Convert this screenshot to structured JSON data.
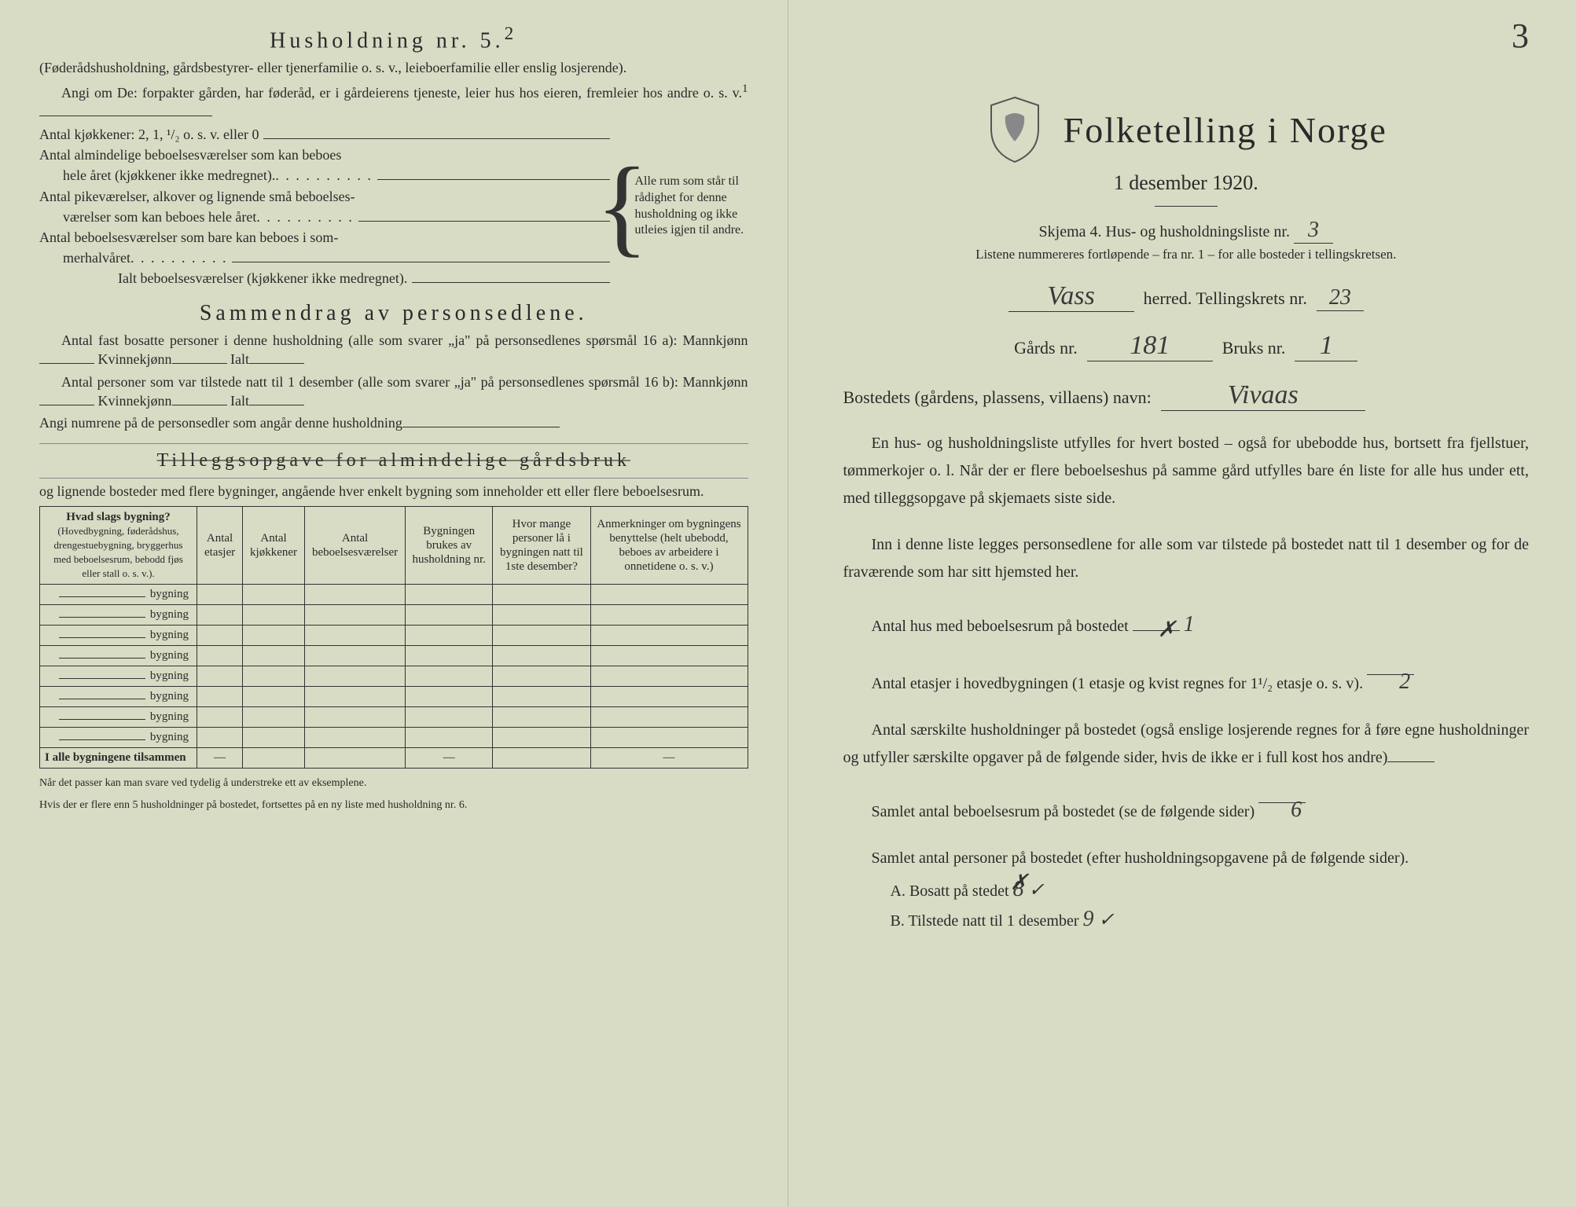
{
  "left": {
    "household_title": "Husholdning nr. 5.",
    "household_title_sup": "2",
    "household_sub": "(Føderådshusholdning, gårdsbestyrer- eller tjenerfamilie o. s. v., leieboerfamilie eller enslig losjerende).",
    "angi_line": "Angi om De: forpakter gården, har føderåd, er i gårdeierens tjeneste, leier hus hos eieren, fremleier hos andre o. s. v.",
    "angi_sup": "1",
    "kjokken_line": "Antal kjøkkener: 2, 1, ¹/₂ o. s. v. eller 0",
    "alm_line1": "Antal almindelige beboelsesværelser som kan beboes",
    "alm_line2": "hele året (kjøkkener ikke medregnet).",
    "pike_line1": "Antal pikeværelser, alkover og lignende små beboelses-",
    "pike_line2": "værelser som kan beboes hele året",
    "som_line1": "Antal beboelsesværelser som bare kan beboes i som-",
    "som_line2": "merhalvåret",
    "ialt_line": "Ialt beboelsesværelser (kjøkkener ikke medregnet).",
    "brace_text": "Alle rum som står til rådighet for denne husholdning og ikke utleies igjen til andre.",
    "sammendrag_title": "Sammendrag av personsedlene.",
    "sam_line1": "Antal fast bosatte personer i denne husholdning (alle som svarer „ja\" på personsedlenes spørsmål 16 a): Mannkjønn",
    "sam_kv": "Kvinnekjønn",
    "sam_ialt": "Ialt",
    "sam_line2": "Antal personer som var tilstede natt til 1 desember (alle som svarer „ja\" på personsedlenes spørsmål 16 b): Mannkjønn",
    "angi_num": "Angi numrene på de personsedler som angår denne husholdning",
    "tillegg_title": "Tilleggsopgave for almindelige gårdsbruk",
    "tillegg_sub": "og lignende bosteder med flere bygninger, angående hver enkelt bygning som inneholder ett eller flere beboelsesrum.",
    "table": {
      "col1": "Hvad slags bygning?",
      "col1_sub": "(Hovedbygning, føderådshus, drengestuebygning, bryggerhus med beboelsesrum, bebodd fjøs eller stall o. s. v.).",
      "col2": "Antal etasjer",
      "col3": "Antal kjøkkener",
      "col4": "Antal beboelsesværelser",
      "col5": "Bygningen brukes av husholdning nr.",
      "col6": "Hvor mange personer lå i bygningen natt til 1ste desember?",
      "col7": "Anmerkninger om bygningens benyttelse (helt ubebodd, beboes av arbeidere i onnetidene o. s. v.)",
      "rowlabel": "bygning",
      "sumrow": "I alle bygningene tilsammen"
    },
    "footnote1": "Når det passer kan man svare ved tydelig å understreke ett av eksemplene.",
    "footnote2": "Hvis der er flere enn 5 husholdninger på bostedet, fortsettes på en ny liste med husholdning nr. 6."
  },
  "right": {
    "corner": "3",
    "title": "Folketelling i Norge",
    "date": "1 desember 1920.",
    "skjema": "Skjema 4.  Hus- og husholdningsliste nr.",
    "skjema_val": "3",
    "listnote": "Listene nummereres fortløpende – fra nr. 1 – for alle bosteder i tellingskretsen.",
    "herred_val": "Vass",
    "herred_lbl": "herred.  Tellingskrets nr.",
    "krets_val": "23",
    "gard_lbl": "Gårds nr.",
    "gard_val": "181",
    "bruk_lbl": "Bruks nr.",
    "bruk_val": "1",
    "bosted_lbl": "Bostedets (gårdens, plassens, villaens) navn:",
    "bosted_val": "Vivaas",
    "para1": "En hus- og husholdningsliste utfylles for hvert bosted – også for ubebodde hus, bortsett fra fjellstuer, tømmerkojer o. l.  Når der er flere beboelseshus på samme gård utfylles bare én liste for alle hus under ett, med tilleggsopgave på skjemaets siste side.",
    "para2": "Inn i denne liste legges personsedlene for alle som var tilstede på bostedet natt til 1 desember og for de fraværende som har sitt hjemsted her.",
    "antal_hus_lbl": "Antal hus med beboelsesrum på bostedet",
    "antal_hus_val": "1",
    "etasjer_lbl": "Antal etasjer i hovedbygningen (1 etasje og kvist regnes for 1¹/₂ etasje o. s. v).",
    "etasjer_val": "2",
    "saerskilte": "Antal særskilte husholdninger på bostedet (også enslige losjerende regnes for å føre egne husholdninger og utfyller særskilte opgaver på de følgende sider, hvis de ikke er i full kost hos andre)",
    "samlet_rum_lbl": "Samlet antal beboelsesrum på bostedet (se de følgende sider)",
    "samlet_rum_val": "6",
    "samlet_pers_lbl": "Samlet antal personer på bostedet (efter husholdningsopgavene på de følgende sider).",
    "a_lbl": "A.  Bosatt på stedet",
    "a_val": "8",
    "b_lbl": "B.  Tilstede natt til 1 desember",
    "b_val": "9"
  }
}
